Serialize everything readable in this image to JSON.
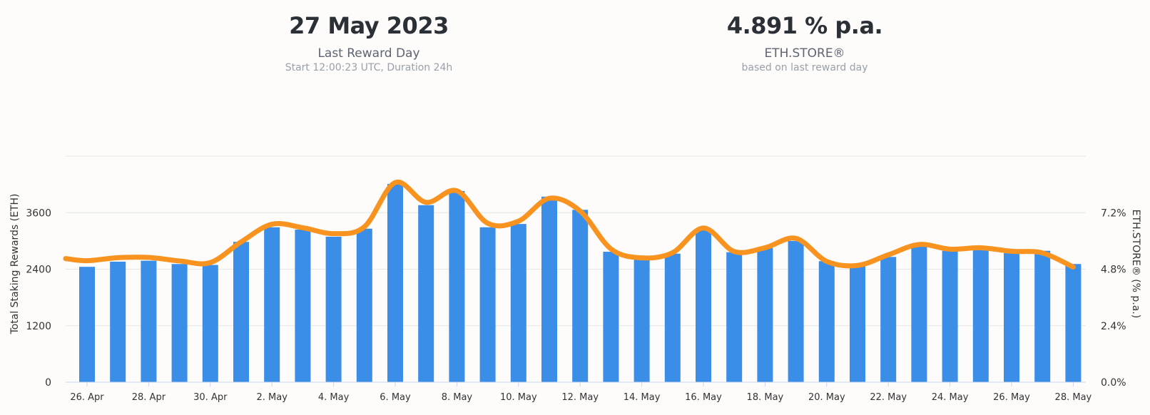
{
  "header": {
    "reward_day": {
      "value": "27 May 2023",
      "label": "Last Reward Day",
      "sub": "Start 12:00:23 UTC, Duration 24h"
    },
    "eth_store": {
      "value": "4.891 % p.a.",
      "label": "ETH.STORE®",
      "sub": "based on last reward day"
    }
  },
  "chart_data": {
    "type": "bar",
    "xlabel": "",
    "tick_labels": [
      "26. Apr",
      "28. Apr",
      "30. Apr",
      "2. May",
      "4. May",
      "6. May",
      "8. May",
      "10. May",
      "12. May",
      "14. May",
      "16. May",
      "18. May",
      "20. May",
      "22. May",
      "24. May",
      "26. May",
      "28. May"
    ],
    "categories": [
      "26 Apr",
      "27 Apr",
      "28 Apr",
      "29 Apr",
      "30 Apr",
      "1 May",
      "2 May",
      "3 May",
      "4 May",
      "5 May",
      "6 May",
      "7 May",
      "8 May",
      "9 May",
      "10 May",
      "11 May",
      "12 May",
      "13 May",
      "14 May",
      "15 May",
      "16 May",
      "17 May",
      "18 May",
      "19 May",
      "20 May",
      "21 May",
      "22 May",
      "23 May",
      "24 May",
      "25 May",
      "26 May",
      "27 May",
      "28 May"
    ],
    "y_left": {
      "label": "Total Staking Rewards (ETH)",
      "ticks": [
        "0",
        "1200",
        "2400",
        "3600"
      ],
      "range": [
        0,
        4800
      ]
    },
    "y_right": {
      "label": "ETH.STORE® (% p.a.)",
      "ticks": [
        "0.0%",
        "2.4%",
        "4.8%",
        "7.2%"
      ],
      "range": [
        0,
        9.6
      ]
    },
    "series": [
      {
        "axis": "left",
        "kind": "bar",
        "color": "#3a8ee8",
        "values": [
          2450,
          2560,
          2580,
          2510,
          2490,
          2980,
          3290,
          3240,
          3090,
          3260,
          4210,
          3760,
          4060,
          3290,
          3360,
          3940,
          3660,
          2770,
          2620,
          2730,
          3240,
          2760,
          2850,
          3000,
          2570,
          2460,
          2660,
          2920,
          2790,
          2840,
          2740,
          2790,
          2510
        ]
      },
      {
        "axis": "right",
        "kind": "line",
        "color": "#f7931e",
        "values": [
          5.16,
          5.29,
          5.3,
          5.15,
          5.08,
          5.96,
          6.71,
          6.56,
          6.31,
          6.6,
          8.48,
          7.64,
          8.13,
          6.75,
          6.84,
          7.81,
          7.27,
          5.66,
          5.28,
          5.5,
          6.55,
          5.55,
          5.71,
          6.11,
          5.13,
          4.96,
          5.41,
          5.85,
          5.65,
          5.71,
          5.56,
          5.49,
          4.89
        ]
      }
    ],
    "grid": true
  }
}
